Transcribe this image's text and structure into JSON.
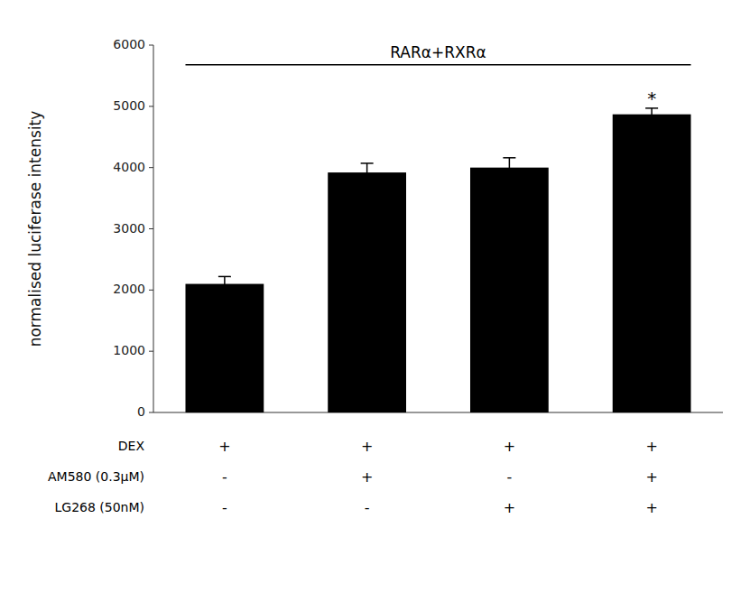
{
  "chart_data": {
    "type": "bar",
    "categories": [
      null,
      null,
      null,
      null
    ],
    "values": [
      2100,
      3920,
      4000,
      4870
    ],
    "errors": [
      120,
      150,
      160,
      100
    ],
    "color": "#000000",
    "ylabel": "normalised luciferase intensity",
    "ylim": [
      0,
      6000
    ],
    "yticks": [
      0,
      1000,
      2000,
      3000,
      4000,
      5000,
      6000
    ],
    "grid": false,
    "annotation": {
      "text": "RARα+RXRα",
      "y": 5680
    },
    "significance_labels": [
      null,
      null,
      null,
      "*"
    ],
    "conditions": [
      {
        "name": "DEX",
        "labels": [
          "+",
          "+",
          "+",
          "+"
        ]
      },
      {
        "name": "AM580 (0.3μM)",
        "labels": [
          "-",
          "+",
          "-",
          "+"
        ]
      },
      {
        "name": "LG268 (50nM)",
        "labels": [
          "-",
          "-",
          "+",
          "+"
        ]
      }
    ]
  }
}
